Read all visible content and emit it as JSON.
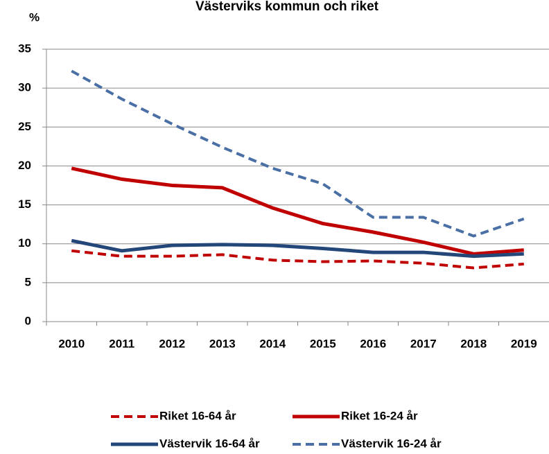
{
  "chart_data": {
    "type": "line",
    "title": "Västerviks kommun och riket",
    "y_label": "%",
    "categories": [
      "2010",
      "2011",
      "2012",
      "2013",
      "2014",
      "2015",
      "2016",
      "2017",
      "2018",
      "2019"
    ],
    "ylim": [
      0,
      35
    ],
    "yticks": [
      0,
      5,
      10,
      15,
      20,
      25,
      30,
      35
    ],
    "grid": true,
    "series": [
      {
        "name": "Riket 16-64 år",
        "color": "#c00000",
        "dash": "dashed",
        "values": [
          9.1,
          8.4,
          8.4,
          8.6,
          7.9,
          7.7,
          7.8,
          7.5,
          6.9,
          7.4
        ]
      },
      {
        "name": "Riket 16-24 år",
        "color": "#c00000",
        "dash": "solid",
        "values": [
          19.7,
          18.3,
          17.5,
          17.2,
          14.6,
          12.6,
          11.5,
          10.2,
          8.7,
          9.2
        ]
      },
      {
        "name": "Västervik 16-64 år",
        "color": "#24477a",
        "dash": "solid",
        "values": [
          10.4,
          9.1,
          9.8,
          9.9,
          9.8,
          9.4,
          8.9,
          8.9,
          8.4,
          8.7
        ]
      },
      {
        "name": "Västervik 16-24 år",
        "color": "#4a6fa5",
        "dash": "dashed",
        "values": [
          32.2,
          28.6,
          25.4,
          22.4,
          19.7,
          17.7,
          13.4,
          13.4,
          11.0,
          13.2
        ]
      }
    ]
  }
}
